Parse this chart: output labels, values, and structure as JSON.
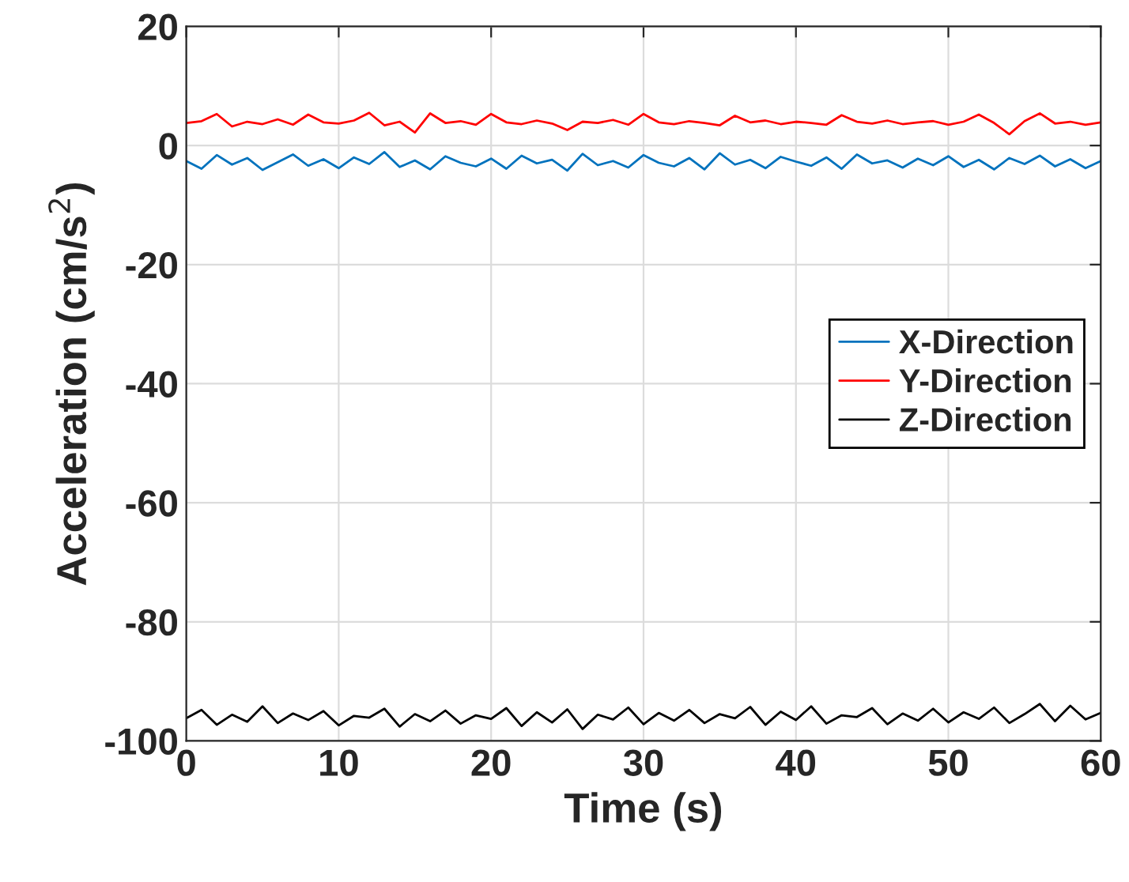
{
  "chart_data": {
    "type": "line",
    "xlabel": "Time (s)",
    "ylabel": "Acceleration (cm/s$^{2}$)",
    "x": [
      0,
      1,
      2,
      3,
      4,
      5,
      6,
      7,
      8,
      9,
      10,
      11,
      12,
      13,
      14,
      15,
      16,
      17,
      18,
      19,
      20,
      21,
      22,
      23,
      24,
      25,
      26,
      27,
      28,
      29,
      30,
      31,
      32,
      33,
      34,
      35,
      36,
      37,
      38,
      39,
      40,
      41,
      42,
      43,
      44,
      45,
      46,
      47,
      48,
      49,
      50,
      51,
      52,
      53,
      54,
      55,
      56,
      57,
      58,
      59,
      60
    ],
    "series": [
      {
        "name": "X-Direction",
        "color": "#0072bd",
        "values": [
          -2.6,
          -3.9,
          -1.6,
          -3.2,
          -2.1,
          -4.1,
          -2.8,
          -1.5,
          -3.4,
          -2.3,
          -3.8,
          -2.0,
          -3.1,
          -1.1,
          -3.6,
          -2.5,
          -4.0,
          -1.8,
          -2.9,
          -3.5,
          -2.2,
          -3.9,
          -1.7,
          -3.0,
          -2.4,
          -4.2,
          -1.4,
          -3.3,
          -2.6,
          -3.7,
          -1.6,
          -2.9,
          -3.5,
          -2.1,
          -4.0,
          -1.3,
          -3.2,
          -2.4,
          -3.8,
          -1.9,
          -2.7,
          -3.4,
          -2.0,
          -3.9,
          -1.5,
          -3.0,
          -2.5,
          -3.7,
          -2.2,
          -3.3,
          -1.8,
          -3.6,
          -2.4,
          -4.0,
          -2.1,
          -3.1,
          -1.7,
          -3.5,
          -2.3,
          -3.8,
          -2.6
        ]
      },
      {
        "name": "Y-Direction",
        "color": "#ff0000",
        "values": [
          3.8,
          4.1,
          5.3,
          3.2,
          4.0,
          3.6,
          4.4,
          3.5,
          5.2,
          3.9,
          3.7,
          4.2,
          5.5,
          3.4,
          4.0,
          2.2,
          5.4,
          3.8,
          4.1,
          3.5,
          5.3,
          3.9,
          3.6,
          4.2,
          3.7,
          2.6,
          4.0,
          3.8,
          4.3,
          3.5,
          5.3,
          3.9,
          3.6,
          4.1,
          3.8,
          3.4,
          5.0,
          3.9,
          4.2,
          3.6,
          4.0,
          3.8,
          3.5,
          5.1,
          4.0,
          3.7,
          4.2,
          3.6,
          3.9,
          4.1,
          3.5,
          4.0,
          5.2,
          3.8,
          1.9,
          4.1,
          5.4,
          3.7,
          4.0,
          3.5,
          3.9
        ]
      },
      {
        "name": "Z-Direction",
        "color": "#000000",
        "values": [
          -96.2,
          -94.8,
          -97.3,
          -95.6,
          -96.8,
          -94.2,
          -97.0,
          -95.4,
          -96.5,
          -95.0,
          -97.4,
          -95.8,
          -96.1,
          -94.6,
          -97.6,
          -95.5,
          -96.7,
          -94.9,
          -97.1,
          -95.7,
          -96.3,
          -94.5,
          -97.5,
          -95.2,
          -96.9,
          -94.7,
          -98.0,
          -95.6,
          -96.4,
          -94.4,
          -97.2,
          -95.3,
          -96.6,
          -94.8,
          -97.0,
          -95.5,
          -96.2,
          -94.3,
          -97.3,
          -95.1,
          -96.5,
          -94.2,
          -97.1,
          -95.7,
          -96.0,
          -94.5,
          -97.2,
          -95.4,
          -96.6,
          -94.6,
          -96.9,
          -95.2,
          -96.3,
          -94.4,
          -97.0,
          -95.5,
          -93.8,
          -96.7,
          -94.1,
          -96.4,
          -95.3
        ]
      }
    ],
    "xlim": [
      0,
      60
    ],
    "xticks": [
      0,
      10,
      20,
      30,
      40,
      50,
      60
    ],
    "ylim": [
      -100,
      20
    ],
    "yticks": [
      -100,
      -80,
      -60,
      -40,
      -20,
      0,
      20
    ],
    "grid": true,
    "legend": "right",
    "marker": "none",
    "line_style": "solid"
  }
}
